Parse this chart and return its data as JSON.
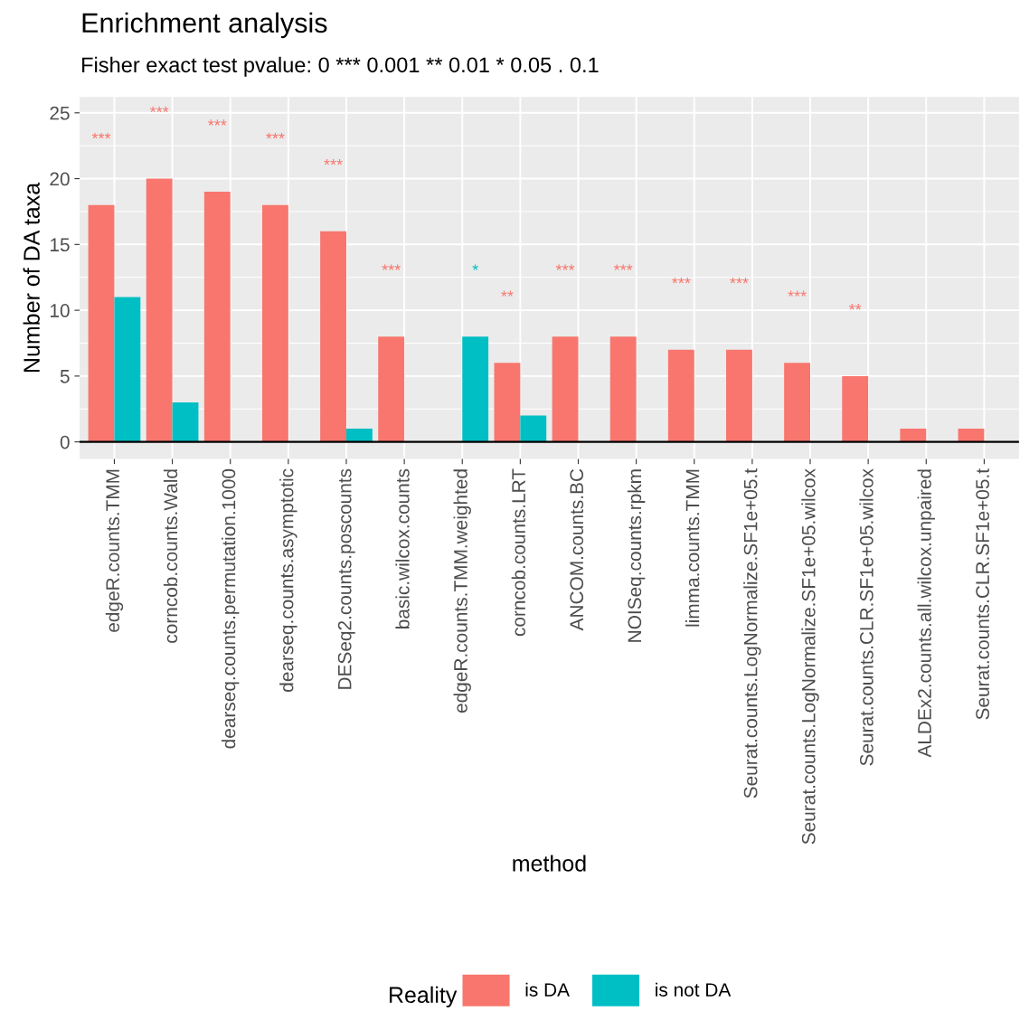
{
  "chart_data": {
    "type": "bar",
    "title": "Enrichment analysis",
    "subtitle": "Fisher exact test pvalue: 0 *** 0.001 ** 0.01 * 0.05 . 0.1",
    "xlabel": "method",
    "ylabel": "Number of DA taxa",
    "legend_title": "Reality",
    "categories": [
      "edgeR.counts.TMM",
      "corncob.counts.Wald",
      "dearseq.counts.permutation.1000",
      "dearseq.counts.asymptotic",
      "DESeq2.counts.poscounts",
      "basic.wilcox.counts",
      "edgeR.counts.TMM.weighted",
      "corncob.counts.LRT",
      "ANCOM.counts.BC",
      "NOISeq.counts.rpkm",
      "limma.counts.TMM",
      "Seurat.counts.LogNormalize.SF1e+05.t",
      "Seurat.counts.LogNormalize.SF1e+05.wilcox",
      "Seurat.counts.CLR.SF1e+05.wilcox",
      "ALDEx2.counts.all.wilcox.unpaired",
      "Seurat.counts.CLR.SF1e+05.t"
    ],
    "series": [
      {
        "name": "is DA",
        "color": "#f8766d",
        "values": [
          18,
          20,
          19,
          18,
          16,
          8,
          null,
          6,
          8,
          8,
          7,
          7,
          6,
          5,
          1,
          1
        ]
      },
      {
        "name": "is not DA",
        "color": "#00bfc4",
        "values": [
          11,
          3,
          null,
          null,
          1,
          null,
          8,
          2,
          null,
          null,
          null,
          null,
          null,
          null,
          null,
          null
        ]
      }
    ],
    "annotations": [
      "***",
      "***",
      "***",
      "***",
      "***",
      "***",
      "*",
      "**",
      "***",
      "***",
      "***",
      "***",
      "***",
      "**"
    ],
    "ylim": [
      -1.3,
      26.2
    ],
    "yticks": [
      0,
      5,
      10,
      15,
      20,
      25
    ],
    "grid": true,
    "legend": "bottom",
    "ref_lines": [
      {
        "axis": "y",
        "value": 0,
        "color": "#000000"
      }
    ]
  }
}
